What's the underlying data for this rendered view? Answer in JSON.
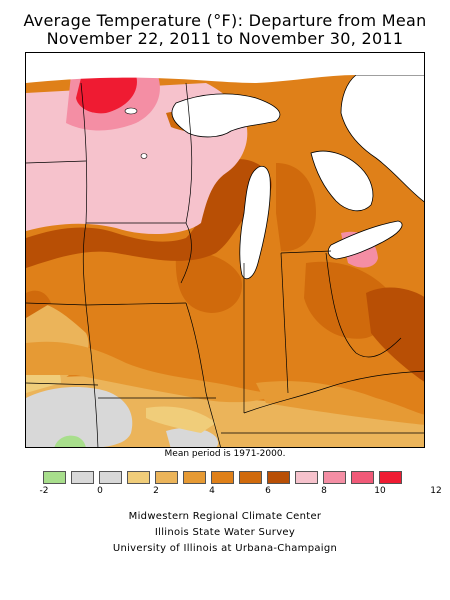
{
  "title_line1": "Average Temperature (°F): Departure from Mean",
  "title_line2": "November 22, 2011 to November 30, 2011",
  "note": "Mean period is 1971-2000.",
  "legend": {
    "colors": [
      "#a8de8c",
      "#d9d9d9",
      "#d8d8d8",
      "#f0cd7a",
      "#ebb45a",
      "#e69a34",
      "#df8019",
      "#d06a0c",
      "#b84f05",
      "#f6c2cc",
      "#f48ea4",
      "#f05a78",
      "#ef1b32"
    ],
    "tick_labels": [
      "-2",
      "0",
      "2",
      "4",
      "6",
      "8",
      "10",
      "12"
    ]
  },
  "credits": {
    "line1": "Midwestern Regional Climate Center",
    "line2": "Illinois State Water Survey",
    "line3": "University of Illinois at Urbana-Champaign"
  },
  "map": {
    "water_color": "#ffffff",
    "region_colors": {
      "hot_red": "#ef1b32",
      "pink_dark": "#f48ea4",
      "pink_light": "#f6c2cc",
      "brown": "#b84f05",
      "orange_dark": "#d06a0c",
      "orange": "#df8019",
      "orange_light": "#e69a34",
      "tan": "#ebb45a",
      "yellow_tan": "#f0cd7a",
      "gray": "#d8d8d8",
      "green": "#a8de8c"
    }
  }
}
